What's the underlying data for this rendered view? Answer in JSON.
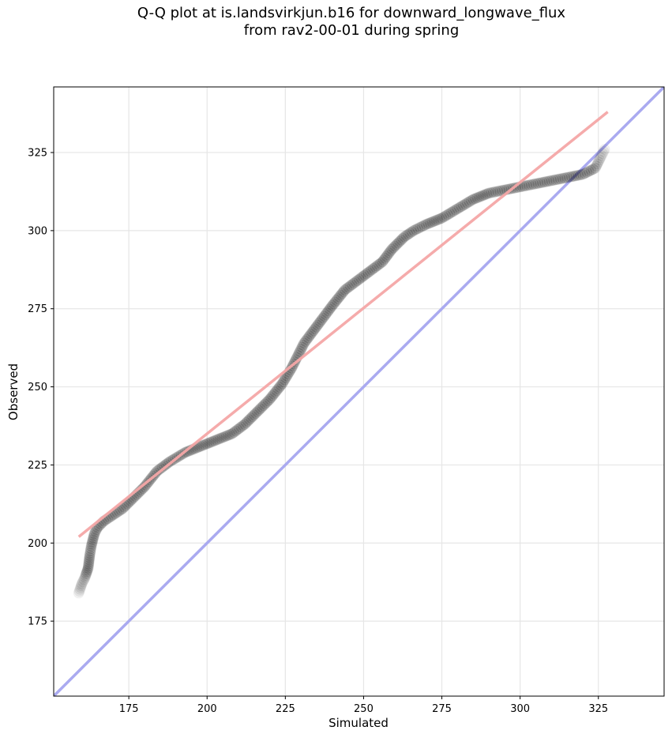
{
  "chart_data": {
    "type": "scatter",
    "title": [
      "Q-Q plot at is.landsvirkjun.b16 for downward_longwave_flux",
      "from rav2-00-01 during spring"
    ],
    "xlabel": "Simulated",
    "ylabel": "Observed",
    "xlim": [
      151,
      346
    ],
    "ylim": [
      151,
      346
    ],
    "xticks": [
      175,
      200,
      225,
      250,
      275,
      300,
      325
    ],
    "yticks": [
      175,
      200,
      225,
      250,
      275,
      300,
      325
    ],
    "grid": true,
    "fit_line": {
      "color": "#f4a6a6",
      "points": [
        [
          159,
          202
        ],
        [
          328,
          338
        ]
      ]
    },
    "identity_line": {
      "color": "#aaaaf0",
      "points": [
        [
          151,
          151
        ],
        [
          346,
          346
        ]
      ]
    },
    "quantiles": {
      "x": [
        159,
        160,
        161,
        162,
        162.5,
        163,
        163.5,
        164,
        165,
        167,
        170,
        173,
        176,
        180,
        184,
        188,
        193,
        198,
        203,
        208,
        212,
        216,
        220,
        224,
        227,
        229,
        231,
        234,
        237,
        240,
        244,
        248,
        252,
        256,
        259,
        263,
        266,
        270,
        275,
        280,
        285,
        290,
        295,
        300,
        305,
        310,
        315,
        320,
        322,
        324,
        325,
        326,
        327
      ],
      "y": [
        184,
        187,
        189,
        192,
        196,
        199,
        201,
        203,
        205,
        207,
        209,
        211,
        214,
        218,
        223,
        226,
        229,
        231,
        233,
        235,
        238,
        242,
        246,
        251,
        256,
        260,
        264,
        268,
        272,
        276,
        281,
        284,
        287,
        290,
        294,
        298,
        300,
        302,
        304,
        307,
        310,
        312,
        313,
        314,
        315,
        316,
        317,
        318,
        319,
        320,
        322,
        324,
        326
      ]
    }
  }
}
